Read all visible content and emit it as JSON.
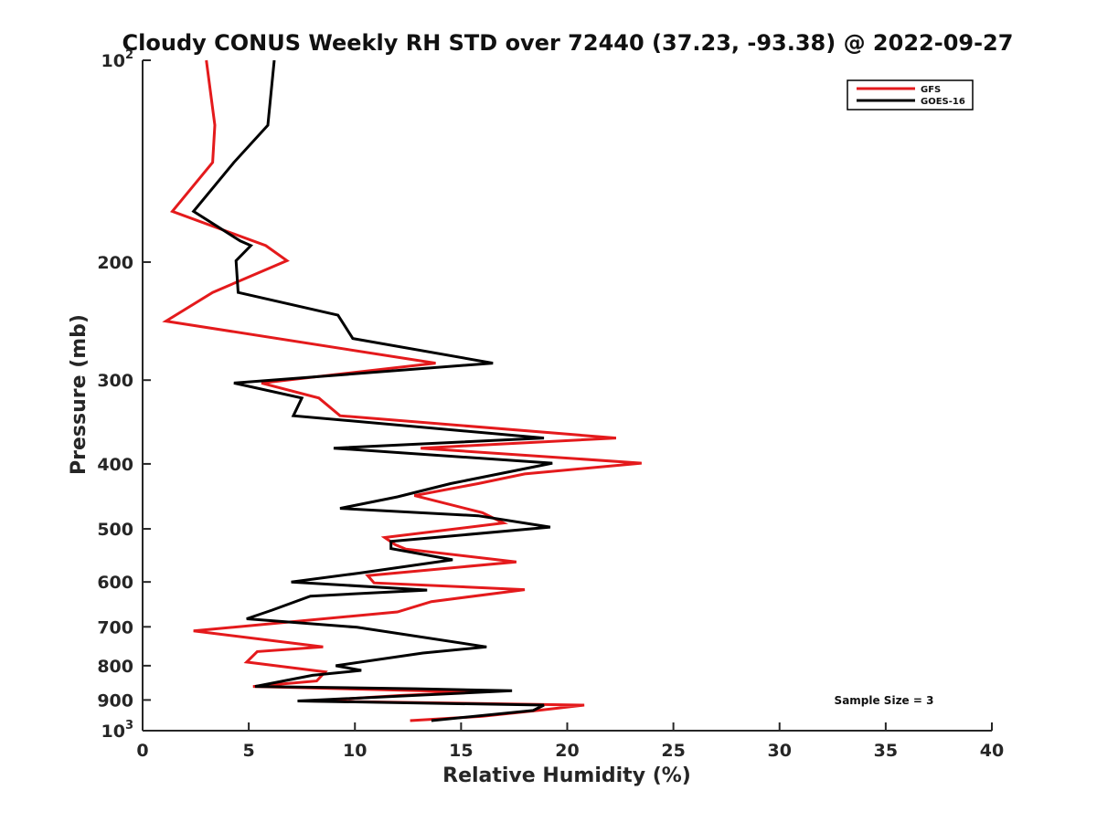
{
  "chart_data": {
    "type": "line",
    "title": "Cloudy CONUS Weekly RH STD over 72440 (37.23, -93.38) @ 2022-09-27",
    "xlabel": "Relative Humidity (%)",
    "ylabel": "Pressure (mb)",
    "xlim": [
      0,
      40
    ],
    "ylim": [
      100,
      1000
    ],
    "y_scale": "log",
    "y_reversed": true,
    "grid": false,
    "legend_position": "top-right",
    "x_ticks": [
      {
        "value": 0,
        "label": "0"
      },
      {
        "value": 5,
        "label": "5"
      },
      {
        "value": 10,
        "label": "10"
      },
      {
        "value": 15,
        "label": "15"
      },
      {
        "value": 20,
        "label": "20"
      },
      {
        "value": 25,
        "label": "25"
      },
      {
        "value": 30,
        "label": "30"
      },
      {
        "value": 35,
        "label": "35"
      },
      {
        "value": 40,
        "label": "40"
      }
    ],
    "y_ticks": [
      {
        "value": 100,
        "label": "10",
        "sup": "2"
      },
      {
        "value": 200,
        "label": "200",
        "sup": ""
      },
      {
        "value": 300,
        "label": "300",
        "sup": ""
      },
      {
        "value": 400,
        "label": "400",
        "sup": ""
      },
      {
        "value": 500,
        "label": "500",
        "sup": ""
      },
      {
        "value": 600,
        "label": "600",
        "sup": ""
      },
      {
        "value": 700,
        "label": "700",
        "sup": ""
      },
      {
        "value": 800,
        "label": "800",
        "sup": ""
      },
      {
        "value": 900,
        "label": "900",
        "sup": ""
      },
      {
        "value": 1000,
        "label": "10",
        "sup": "3"
      }
    ],
    "annotation": "Sample Size = 3",
    "series": [
      {
        "name": "GFS",
        "color": "#e41a1c",
        "points": [
          [
            3.0,
            100
          ],
          [
            3.4,
            125
          ],
          [
            3.3,
            142
          ],
          [
            1.4,
            168
          ],
          [
            5.8,
            189
          ],
          [
            6.8,
            199
          ],
          [
            3.3,
            222
          ],
          [
            1.1,
            245
          ],
          [
            13.8,
            283
          ],
          [
            5.6,
            303
          ],
          [
            8.3,
            319
          ],
          [
            9.3,
            339
          ],
          [
            22.3,
            366
          ],
          [
            13.1,
            379
          ],
          [
            23.5,
            399
          ],
          [
            18.0,
            414
          ],
          [
            15.8,
            428
          ],
          [
            12.8,
            446
          ],
          [
            16.0,
            473
          ],
          [
            17.0,
            490
          ],
          [
            11.4,
            515
          ],
          [
            11.9,
            528
          ],
          [
            12.4,
            536
          ],
          [
            17.6,
            560
          ],
          [
            10.6,
            587
          ],
          [
            10.9,
            602
          ],
          [
            18.0,
            616
          ],
          [
            13.6,
            642
          ],
          [
            12.0,
            665
          ],
          [
            2.4,
            710
          ],
          [
            8.5,
            750
          ],
          [
            5.4,
            762
          ],
          [
            4.9,
            790
          ],
          [
            8.6,
            817
          ],
          [
            8.2,
            843
          ],
          [
            5.2,
            859
          ],
          [
            15.6,
            876
          ],
          [
            12.2,
            886
          ],
          [
            7.9,
            903
          ],
          [
            20.8,
            916
          ],
          [
            18.6,
            933
          ],
          [
            16.0,
            952
          ],
          [
            12.6,
            966
          ]
        ]
      },
      {
        "name": "GOES-16",
        "color": "#000000",
        "points": [
          [
            6.2,
            100
          ],
          [
            5.9,
            125
          ],
          [
            4.3,
            142
          ],
          [
            2.4,
            168
          ],
          [
            4.6,
            186
          ],
          [
            5.1,
            189
          ],
          [
            4.4,
            199
          ],
          [
            4.5,
            222
          ],
          [
            9.2,
            240
          ],
          [
            9.9,
            260
          ],
          [
            16.5,
            283
          ],
          [
            4.3,
            303
          ],
          [
            7.5,
            319
          ],
          [
            7.1,
            339
          ],
          [
            18.9,
            366
          ],
          [
            9.0,
            379
          ],
          [
            19.3,
            399
          ],
          [
            14.5,
            428
          ],
          [
            12.0,
            448
          ],
          [
            9.3,
            466
          ],
          [
            15.8,
            478
          ],
          [
            19.2,
            497
          ],
          [
            11.7,
            522
          ],
          [
            11.7,
            535
          ],
          [
            14.6,
            556
          ],
          [
            10.2,
            582
          ],
          [
            7.0,
            600
          ],
          [
            13.4,
            617
          ],
          [
            7.9,
            630
          ],
          [
            6.1,
            661
          ],
          [
            4.9,
            681
          ],
          [
            10.1,
            701
          ],
          [
            16.2,
            750
          ],
          [
            13.2,
            766
          ],
          [
            9.1,
            800
          ],
          [
            10.3,
            813
          ],
          [
            8.0,
            827
          ],
          [
            5.3,
            859
          ],
          [
            12.9,
            866
          ],
          [
            17.4,
            872
          ],
          [
            7.3,
            903
          ],
          [
            18.9,
            916
          ],
          [
            18.4,
            933
          ],
          [
            13.6,
            966
          ]
        ]
      }
    ]
  }
}
